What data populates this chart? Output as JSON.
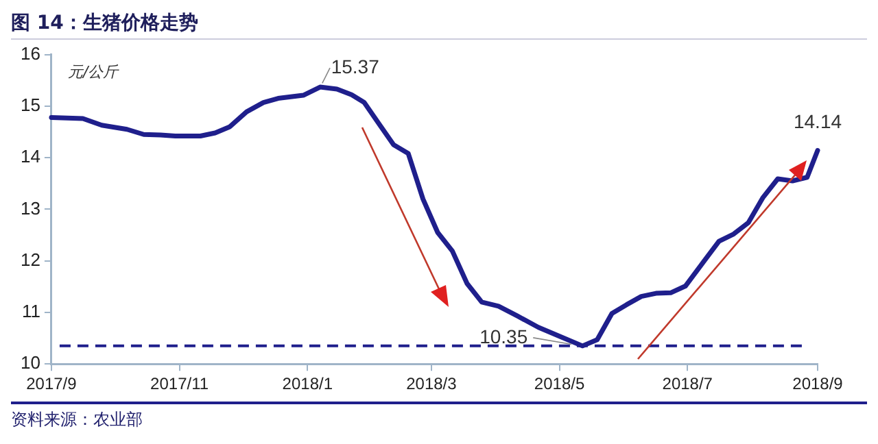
{
  "chart_data": {
    "type": "line",
    "title": "图 14：生猪价格走势",
    "ylabel": "元/公斤",
    "x": [
      "2017-09-01",
      "2017-09-16",
      "2017-09-25",
      "2017-10-07",
      "2017-10-15",
      "2017-10-23",
      "2017-10-30",
      "2017-11-11",
      "2017-11-18",
      "2017-11-25",
      "2017-12-03",
      "2017-12-11",
      "2017-12-18",
      "2017-12-30",
      "2018-01-07",
      "2018-01-15",
      "2018-01-22",
      "2018-01-28",
      "2018-02-04",
      "2018-02-11",
      "2018-02-18",
      "2018-02-25",
      "2018-03-04",
      "2018-03-11",
      "2018-03-18",
      "2018-03-25",
      "2018-04-02",
      "2018-04-11",
      "2018-04-21",
      "2018-05-02",
      "2018-05-12",
      "2018-05-19",
      "2018-05-26",
      "2018-06-02",
      "2018-06-09",
      "2018-06-16",
      "2018-06-23",
      "2018-06-30",
      "2018-07-09",
      "2018-07-16",
      "2018-07-23",
      "2018-07-30",
      "2018-08-06",
      "2018-08-13",
      "2018-08-20",
      "2018-08-27",
      "2018-09-01"
    ],
    "series": [
      {
        "color": "#1f1f8c",
        "values": [
          14.78,
          14.76,
          14.63,
          14.55,
          14.45,
          14.44,
          14.42,
          14.42,
          14.48,
          14.6,
          14.89,
          15.07,
          15.15,
          15.21,
          15.37,
          15.33,
          15.22,
          15.07,
          14.66,
          14.25,
          14.08,
          13.2,
          12.55,
          12.19,
          11.56,
          11.2,
          11.12,
          10.93,
          10.71,
          10.52,
          10.35,
          10.47,
          10.98,
          11.15,
          11.31,
          11.37,
          11.38,
          11.51,
          12.0,
          12.38,
          12.52,
          12.74,
          13.23,
          13.59,
          13.55,
          13.62,
          14.14
        ]
      }
    ],
    "xlim": [
      "2017-09-01",
      "2018-09-01"
    ],
    "xticks": [
      {
        "value": "2017-09-01",
        "label": "2017/9"
      },
      {
        "value": "2017-11-01",
        "label": "2017/11"
      },
      {
        "value": "2018-01-01",
        "label": "2018/1"
      },
      {
        "value": "2018-03-01",
        "label": "2018/3"
      },
      {
        "value": "2018-05-01",
        "label": "2018/5"
      },
      {
        "value": "2018-07-01",
        "label": "2018/7"
      },
      {
        "value": "2018-09-01",
        "label": "2018/9"
      }
    ],
    "ylim": [
      10,
      16
    ],
    "yticks": [
      10,
      11,
      12,
      13,
      14,
      15,
      16
    ],
    "ref_lines": [
      {
        "axis": "y",
        "value": 10.35,
        "color": "#1f1f8c",
        "line_style": "dashed"
      }
    ],
    "annotations": [
      {
        "text": "15.37",
        "x": "2018-01-07",
        "y": 15.37
      },
      {
        "text": "10.35",
        "x": "2018-05-12",
        "y": 10.35
      },
      {
        "text": "14.14",
        "x": "2018-09-01",
        "y": 14.14
      },
      "资料来源：农业部"
    ],
    "grid": false,
    "legend": false,
    "marker": "none",
    "line_style": "solid"
  }
}
